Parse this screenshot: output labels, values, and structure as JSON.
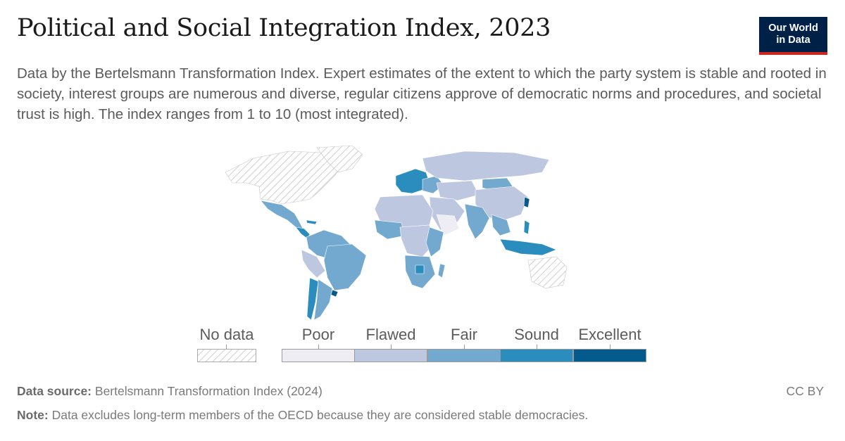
{
  "header": {
    "title": "Political and Social Integration Index, 2023",
    "subtitle": "Data by the Bertelsmann Transformation Index. Expert estimates of the extent to which the party system is stable and rooted in society, interest groups are numerous and diverse, regular citizens approve of democratic norms and procedures, and societal trust is high. The index ranges from 1 to 10 (most integrated)."
  },
  "logo": {
    "line1": "Our World",
    "line2": "in Data",
    "bg_color": "#002147",
    "accent_color": "#ce261e"
  },
  "legend": {
    "no_data_label": "No data",
    "categories": [
      {
        "label": "Poor",
        "color": "#eeedf4"
      },
      {
        "label": "Flawed",
        "color": "#bec7e0"
      },
      {
        "label": "Fair",
        "color": "#74a9cf"
      },
      {
        "label": "Sound",
        "color": "#2b8cbe"
      },
      {
        "label": "Excellent",
        "color": "#045a8d"
      }
    ]
  },
  "footer": {
    "source_label": "Data source:",
    "source_text": "Bertelsmann Transformation Index (2024)",
    "note_label": "Note:",
    "note_text": "Data excludes long-term members of the OECD because they are considered stable democracies.",
    "license": "CC BY"
  }
}
